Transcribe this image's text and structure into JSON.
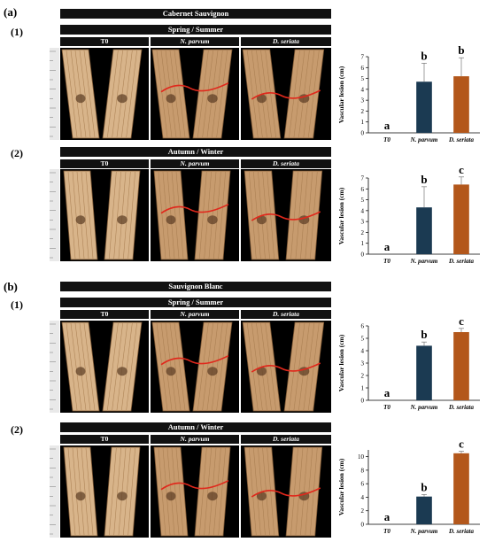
{
  "sections": [
    {
      "label": "(a)",
      "cultivar": "Cabernet Sauvignon",
      "rows": [
        {
          "label": "(1)",
          "season": "Spring / Summer",
          "columns": [
            "T0",
            "N. parvum",
            "D. seriata"
          ]
        },
        {
          "label": "(2)",
          "season": "Autumn / Winter",
          "columns": [
            "T0",
            "N. parvum",
            "D. seriata"
          ]
        }
      ]
    },
    {
      "label": "(b)",
      "cultivar": "Sauvignon Blanc",
      "rows": [
        {
          "label": "(1)",
          "season": "Spring / Summer",
          "columns": [
            "T0",
            "N. parvum",
            "D. seriata"
          ]
        },
        {
          "label": "(2)",
          "season": "Autumn / Winter",
          "columns": [
            "T0",
            "N. parvum",
            "D. seriata"
          ]
        }
      ]
    }
  ],
  "colors": {
    "n_parvum": "#1b3a52",
    "d_seriata": "#b3571b",
    "lesion_line": "#e0281c",
    "banner": "#111111"
  },
  "chart_data": [
    {
      "type": "bar",
      "categories": [
        "T0",
        "N. parvum",
        "D. seriata"
      ],
      "values": [
        0,
        4.7,
        5.2
      ],
      "errors": [
        0,
        1.7,
        1.7
      ],
      "letters": [
        "a",
        "b",
        "b"
      ],
      "ylabel": "Vascular lesion (cm)",
      "ylim": [
        0,
        7
      ],
      "yticks": [
        0,
        1,
        2,
        3,
        4,
        5,
        6,
        7
      ]
    },
    {
      "type": "bar",
      "categories": [
        "T0",
        "N. parvum",
        "D. seriata"
      ],
      "values": [
        0,
        4.3,
        6.4
      ],
      "errors": [
        0,
        1.9,
        0.7
      ],
      "letters": [
        "a",
        "b",
        "c"
      ],
      "ylabel": "Vascular lesion (cm)",
      "ylim": [
        0,
        7
      ],
      "yticks": [
        0,
        1,
        2,
        3,
        4,
        5,
        6,
        7
      ]
    },
    {
      "type": "bar",
      "categories": [
        "T0",
        "N. parvum",
        "D. seriata"
      ],
      "values": [
        0,
        4.4,
        5.5
      ],
      "errors": [
        0,
        0.3,
        0.3
      ],
      "letters": [
        "a",
        "b",
        "c"
      ],
      "ylabel": "Vascular lesion (cm)",
      "ylim": [
        0,
        6
      ],
      "yticks": [
        0,
        1,
        2,
        3,
        4,
        5,
        6
      ]
    },
    {
      "type": "bar",
      "categories": [
        "T0",
        "N. parvum",
        "D. seriata"
      ],
      "values": [
        0,
        4.1,
        10.5
      ],
      "errors": [
        0,
        0.3,
        0.3
      ],
      "letters": [
        "a",
        "b",
        "c"
      ],
      "ylabel": "Vascular lesion (cm)",
      "ylim": [
        0,
        11
      ],
      "yticks": [
        0,
        2,
        4,
        6,
        8,
        10
      ]
    }
  ]
}
